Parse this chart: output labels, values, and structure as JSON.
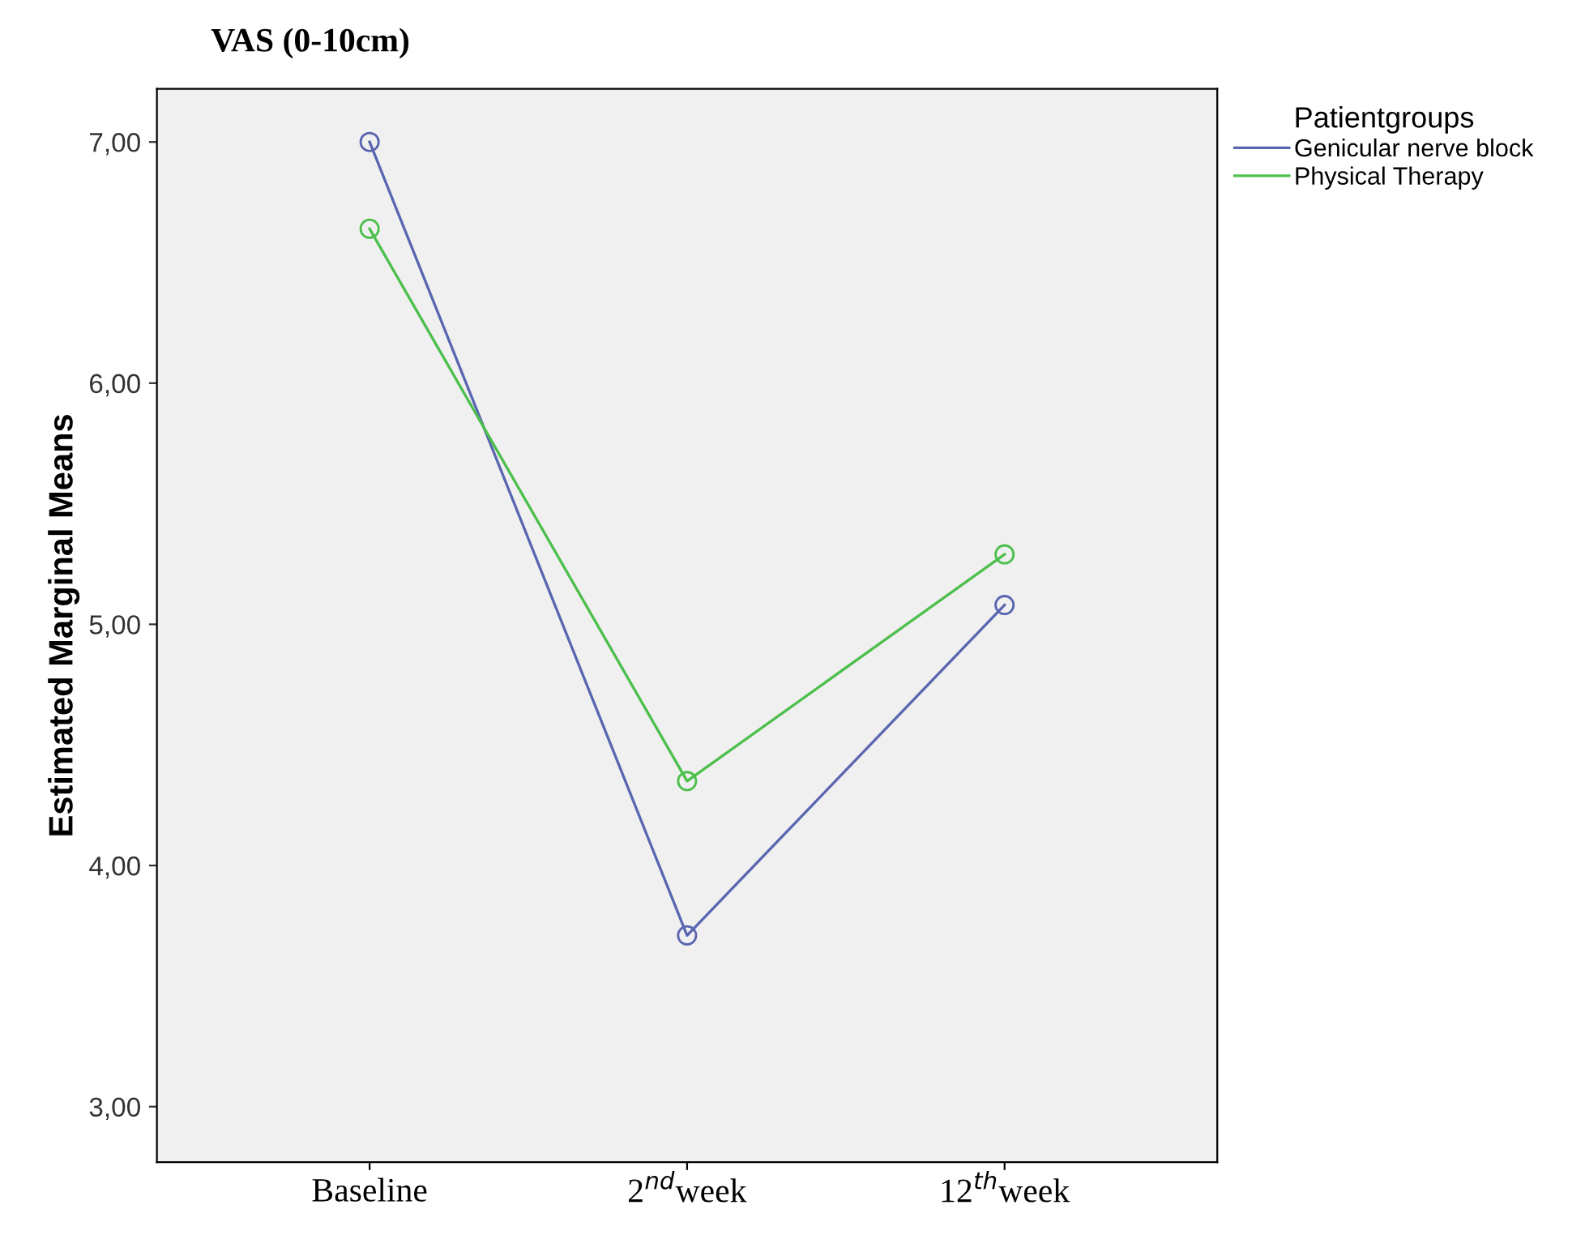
{
  "chart_data": {
    "type": "line",
    "title": "VAS (0-10cm)",
    "ylabel": "Estimated Marginal Means",
    "legend_title": "Patientgroups",
    "categories": [
      "Baseline",
      "2$^{nd}$week",
      "12$^{th}$week"
    ],
    "series": [
      {
        "name": "Genicular nerve block",
        "color": "#5a66b0",
        "values": [
          7.0,
          3.71,
          5.08
        ]
      },
      {
        "name": "Physical Therapy",
        "color": "#4cbf4c",
        "values": [
          6.64,
          4.35,
          5.29
        ]
      }
    ],
    "ylim": [
      2.77,
      7.22
    ],
    "yticks": [
      {
        "value": 3,
        "label": "3,00"
      },
      {
        "value": 4,
        "label": "4,00"
      },
      {
        "value": 5,
        "label": "5,00"
      },
      {
        "value": 6,
        "label": "6,00"
      },
      {
        "value": 7,
        "label": "7,00"
      }
    ],
    "marker": "circle",
    "line_style": "solid",
    "grid": false,
    "legend": "top right"
  }
}
